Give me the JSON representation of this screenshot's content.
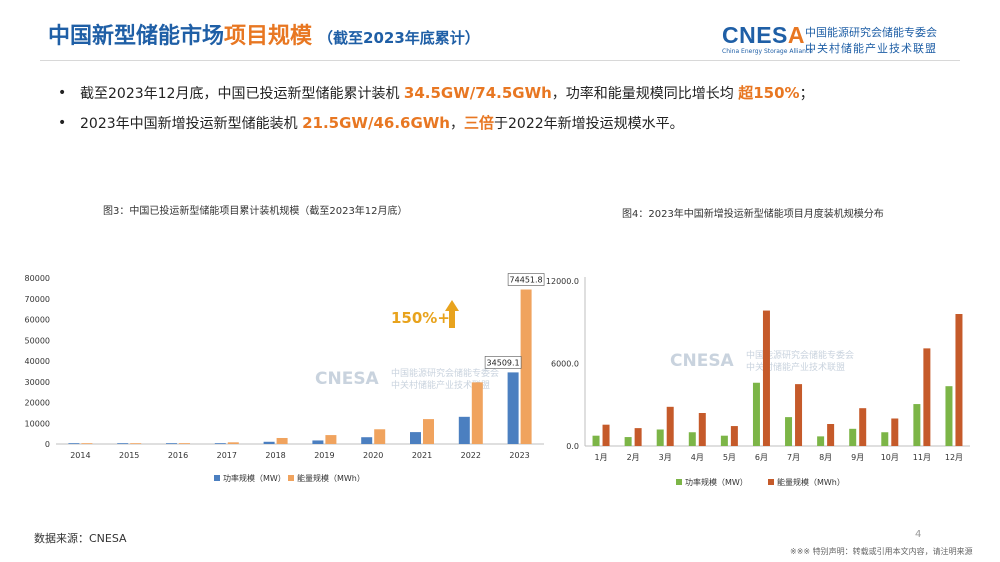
{
  "header": {
    "title_main": "中国新型储能市场",
    "title_accent": "项目规模",
    "title_sub": "（截至2023年底累计）"
  },
  "logo": {
    "mark_a": "CNES",
    "mark_b": "A",
    "en": "China Energy Storage Alliance",
    "cn_line1": "中国能源研究会储能专委会",
    "cn_line2": "中关村储能产业技术联盟"
  },
  "bullets": [
    {
      "dot": "•",
      "t1": "截至2023年12月底，中国已投运新型储能累计装机 ",
      "h1": "34.5GW/74.5GWh",
      "t2": "，功率和能量规模同比增长均 ",
      "h2": "超150%",
      "t3": "；"
    },
    {
      "dot": "•",
      "t1": "2023年中国新增投运新型储能装机 ",
      "h1": "21.5GW/46.6GWh",
      "t2": "，",
      "h2": "三倍",
      "t3": "于2022年新增投运规模水平。"
    }
  ],
  "colors": {
    "title_blue": "#1f5fa6",
    "accent_orange": "#e87722",
    "bar_blue": "#4b7fc0",
    "bar_orange": "#f0a35e",
    "bar_green": "#7cb547",
    "bar_rust": "#c55a2a",
    "watermark": "#c9d3de"
  },
  "chart_data": [
    {
      "type": "bar",
      "title": "图3：中国已投运新型储能项目累计装机规模（截至2023年12月底）",
      "categories": [
        "2014",
        "2015",
        "2016",
        "2017",
        "2018",
        "2019",
        "2020",
        "2021",
        "2022",
        "2023"
      ],
      "series": [
        {
          "name": "功率规模（MW）",
          "values": [
            80,
            140,
            240,
            390,
            1070,
            1710,
            3270,
            5730,
            13100,
            34509.1
          ]
        },
        {
          "name": "能量规模（MWh）",
          "values": [
            120,
            230,
            400,
            810,
            2900,
            4300,
            7100,
            12000,
            29700,
            74451.8
          ]
        }
      ],
      "data_labels": [
        {
          "series": 0,
          "category": "2023",
          "text": "34509.1"
        },
        {
          "series": 1,
          "category": "2023",
          "text": "74451.8"
        }
      ],
      "annotation": {
        "text": "150%+",
        "icon": "arrow-up-icon"
      },
      "yticks": [
        "0",
        "10000",
        "20000",
        "30000",
        "40000",
        "50000",
        "60000",
        "70000",
        "80000"
      ],
      "ylim": [
        0,
        80000
      ],
      "grid": false,
      "legend": "bottom"
    },
    {
      "type": "bar",
      "title": "图4：2023年中国新增投运新型储能项目月度装机规模分布",
      "categories": [
        "1月",
        "2月",
        "3月",
        "4月",
        "5月",
        "6月",
        "7月",
        "8月",
        "9月",
        "10月",
        "11月",
        "12月"
      ],
      "series": [
        {
          "name": "功率规模（MW）",
          "values": [
            750,
            650,
            1200,
            1000,
            750,
            4600,
            2100,
            700,
            1250,
            1000,
            3050,
            4350
          ]
        },
        {
          "name": "能量规模（MWh）",
          "values": [
            1550,
            1300,
            2850,
            2400,
            1450,
            9850,
            4500,
            1600,
            2750,
            2000,
            7100,
            9600
          ]
        }
      ],
      "yticks": [
        "0.0",
        "6000.0",
        "12000.0"
      ],
      "ylim": [
        0,
        12000
      ],
      "grid": false,
      "legend": "bottom"
    }
  ],
  "footer": {
    "source": "数据来源：CNESA",
    "page": "4",
    "note": "※※※ 特别声明：转载或引用本文内容，请注明来源"
  }
}
